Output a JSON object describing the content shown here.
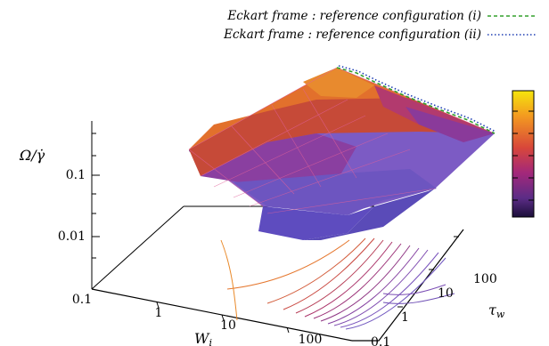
{
  "chart_data": {
    "type": "surface3d",
    "zlabel": "Ω/γ̇",
    "xlabel": "W_i",
    "ylabel": "τ_w",
    "z_scale": "log",
    "x_scale": "log",
    "y_scale": "log",
    "z_ticks": [
      "0.01",
      "0.1"
    ],
    "x_ticks": [
      "0.1",
      "1",
      "10",
      "100"
    ],
    "y_ticks": [
      "0.1",
      "1",
      "10",
      "100"
    ],
    "legend": [
      {
        "label": "Eckart frame : reference configuration (i)",
        "color": "#33a02c",
        "dash": "dashed"
      },
      {
        "label": "Eckart frame : reference configuration (ii)",
        "color": "#1f3fb4",
        "dash": "dotted"
      }
    ],
    "colorbox": {
      "colors": [
        "#f5e50c",
        "#f39a20",
        "#d8473a",
        "#a3287a",
        "#5b2c86",
        "#1b0f3a"
      ]
    },
    "grid": false
  }
}
